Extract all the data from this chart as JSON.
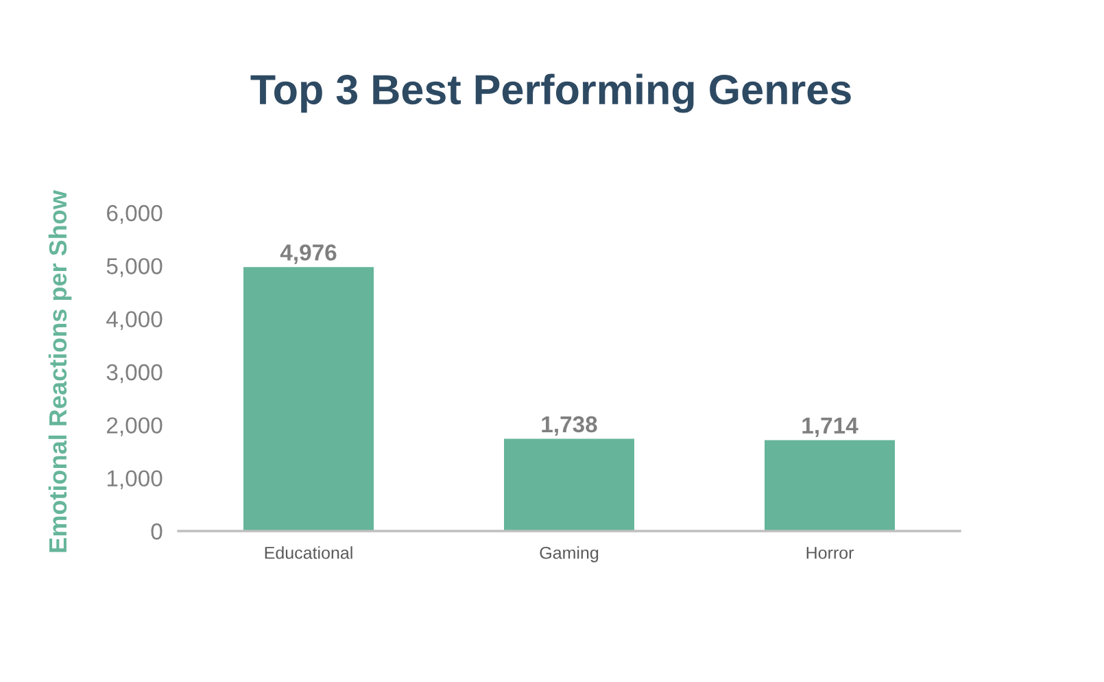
{
  "chart_data": {
    "type": "bar",
    "title": "Top 3 Best Performing Genres",
    "ylabel": "Emotional Reactions per Show",
    "categories": [
      "Educational",
      "Gaming",
      "Horror"
    ],
    "values": [
      4976,
      1738,
      1714
    ],
    "value_labels": [
      "4,976",
      "1,738",
      "1,714"
    ],
    "color": "#66b59b",
    "ylim": [
      0,
      6000
    ],
    "yticks": [
      {
        "value": 0,
        "label": "0"
      },
      {
        "value": 1000,
        "label": "1,000"
      },
      {
        "value": 2000,
        "label": "2,000"
      },
      {
        "value": 3000,
        "label": "3,000"
      },
      {
        "value": 4000,
        "label": "4,000"
      },
      {
        "value": 5000,
        "label": "5,000"
      },
      {
        "value": 6000,
        "label": "6,000"
      }
    ],
    "grid": false,
    "legend": false
  }
}
